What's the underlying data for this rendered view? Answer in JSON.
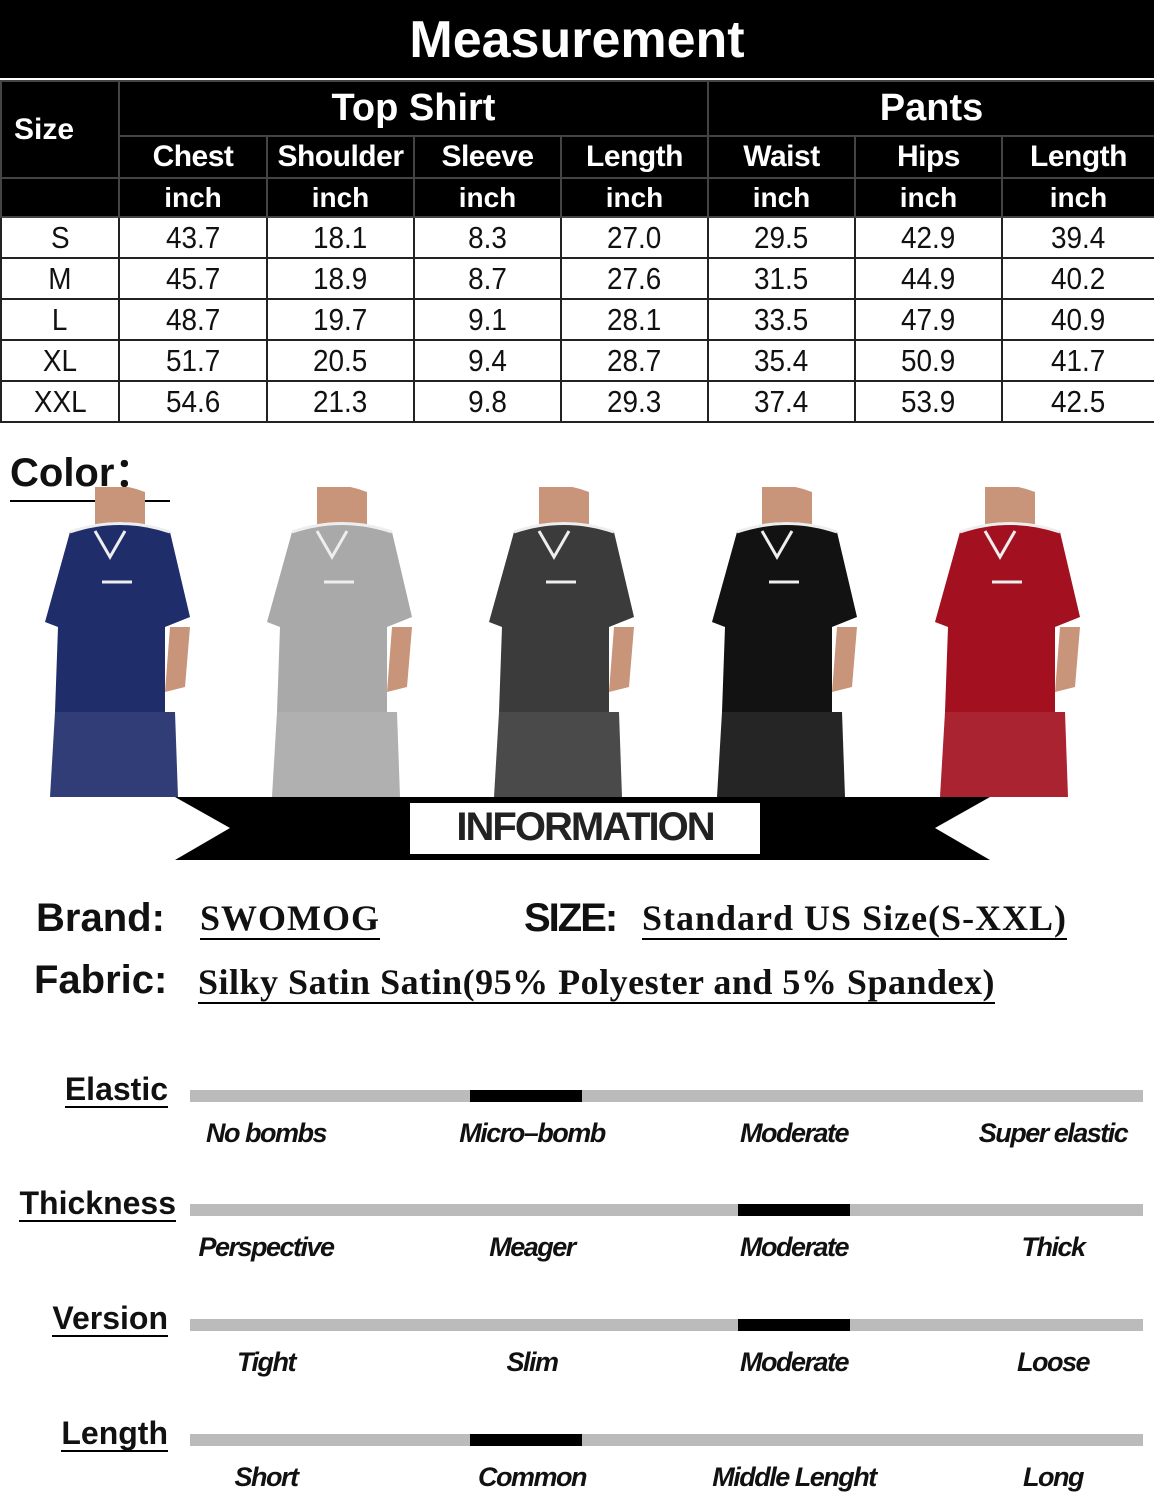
{
  "title": "Measurement",
  "table": {
    "size_header": "Size",
    "groups": [
      "Top Shirt",
      "Pants"
    ],
    "columns": [
      "Chest",
      "Shoulder",
      "Sleeve",
      "Length",
      "Waist",
      "Hips",
      "Length"
    ],
    "unit": "inch",
    "rows": [
      [
        "S",
        "43.7",
        "18.1",
        "8.3",
        "27.0",
        "29.5",
        "42.9",
        "39.4"
      ],
      [
        "M",
        "45.7",
        "18.9",
        "8.7",
        "27.6",
        "31.5",
        "44.9",
        "40.2"
      ],
      [
        "L",
        "48.7",
        "19.7",
        "9.1",
        "28.1",
        "33.5",
        "47.9",
        "40.9"
      ],
      [
        "XL",
        "51.7",
        "20.5",
        "9.4",
        "28.7",
        "35.4",
        "50.9",
        "41.7"
      ],
      [
        "XXL",
        "54.6",
        "21.3",
        "9.8",
        "29.3",
        "37.4",
        "53.9",
        "42.5"
      ]
    ]
  },
  "color_label": "Color：",
  "colors": [
    "#1f2d6b",
    "#a9a9a9",
    "#3b3b3b",
    "#121212",
    "#a3101f"
  ],
  "info_banner": "INFORMATION",
  "info": {
    "brand_label": "Brand:",
    "brand": "SWOMOG",
    "size_label": "SIZE:",
    "size": "Standard US Size(S-XXL)",
    "fabric_label": "Fabric:",
    "fabric": "Silky Satin Satin(95% Polyester and 5% Spandex)"
  },
  "properties": [
    {
      "label": "Elastic",
      "options": [
        "No bombs",
        "Micro–bomb",
        "Moderate",
        "Super elastic"
      ],
      "level": 2
    },
    {
      "label": "Thickness",
      "options": [
        "Perspective",
        "Meager",
        "Moderate",
        "Thick"
      ],
      "level": 3
    },
    {
      "label": "Version",
      "options": [
        "Tight",
        "Slim",
        "Moderate",
        "Loose"
      ],
      "level": 3
    },
    {
      "label": "Length",
      "options": [
        "Short",
        "Common",
        "Middle Lenght",
        "Long"
      ],
      "level": 2
    }
  ]
}
